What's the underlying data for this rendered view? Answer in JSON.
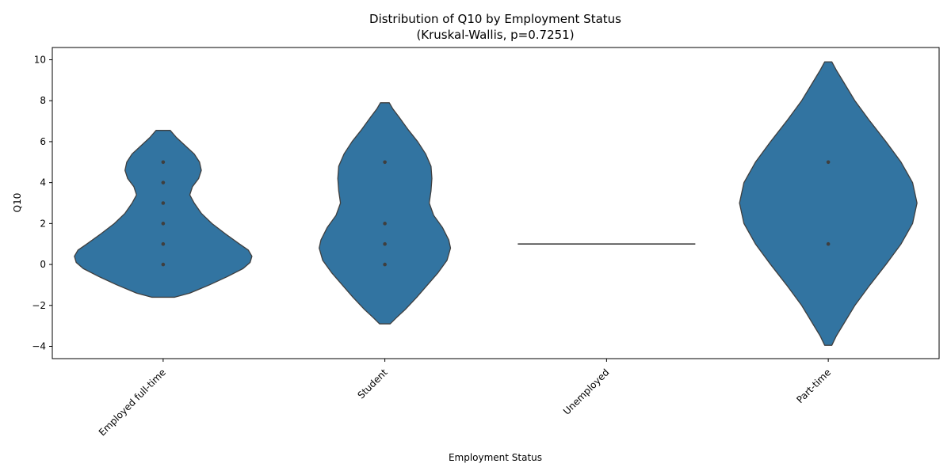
{
  "chart_data": {
    "type": "violin",
    "title": "Distribution of Q10 by Employment Status",
    "subtitle": "(Kruskal-Wallis, p=0.7251)",
    "xlabel": "Employment Status",
    "ylabel": "Q10",
    "categories": [
      "Employed full-time",
      "Student",
      "Unemployed",
      "Part-time"
    ],
    "ylim": [
      -4.6,
      10.6
    ],
    "yticks": [
      -4,
      -2,
      0,
      2,
      4,
      6,
      8,
      10
    ],
    "xtick_rotation": 45,
    "grid": false,
    "fill_color": "#3274a1",
    "edge_color": "#3f3f3f",
    "point_color": "#3f3f3f",
    "violins": [
      {
        "category": "Employed full-time",
        "min": -1.6,
        "max": 6.55,
        "profile": [
          [
            -1.6,
            0.13
          ],
          [
            -1.4,
            0.3
          ],
          [
            -1.0,
            0.52
          ],
          [
            -0.6,
            0.72
          ],
          [
            -0.2,
            0.9
          ],
          [
            0.1,
            0.98
          ],
          [
            0.4,
            1.0
          ],
          [
            0.7,
            0.96
          ],
          [
            1.0,
            0.86
          ],
          [
            1.5,
            0.7
          ],
          [
            2.0,
            0.55
          ],
          [
            2.5,
            0.43
          ],
          [
            3.0,
            0.35
          ],
          [
            3.4,
            0.3
          ],
          [
            3.8,
            0.33
          ],
          [
            4.2,
            0.4
          ],
          [
            4.6,
            0.43
          ],
          [
            5.0,
            0.41
          ],
          [
            5.4,
            0.35
          ],
          [
            5.8,
            0.25
          ],
          [
            6.2,
            0.15
          ],
          [
            6.55,
            0.08
          ]
        ],
        "points": [
          0,
          1,
          2,
          3,
          4,
          5
        ]
      },
      {
        "category": "Student",
        "min": -2.9,
        "max": 7.9,
        "profile": [
          [
            -2.9,
            0.06
          ],
          [
            -2.6,
            0.13
          ],
          [
            -2.2,
            0.23
          ],
          [
            -1.6,
            0.36
          ],
          [
            -1.0,
            0.48
          ],
          [
            -0.4,
            0.6
          ],
          [
            0.2,
            0.7
          ],
          [
            0.8,
            0.74
          ],
          [
            1.2,
            0.72
          ],
          [
            1.8,
            0.65
          ],
          [
            2.4,
            0.55
          ],
          [
            3.0,
            0.5
          ],
          [
            3.6,
            0.52
          ],
          [
            4.2,
            0.53
          ],
          [
            4.8,
            0.52
          ],
          [
            5.4,
            0.46
          ],
          [
            6.0,
            0.37
          ],
          [
            6.6,
            0.26
          ],
          [
            7.2,
            0.16
          ],
          [
            7.6,
            0.09
          ],
          [
            7.9,
            0.05
          ]
        ],
        "points": [
          0,
          1,
          2,
          5
        ]
      },
      {
        "category": "Unemployed",
        "line_value": 1,
        "line_half_width": 1.0,
        "points": [
          1
        ]
      },
      {
        "category": "Part-time",
        "min": -3.95,
        "max": 9.9,
        "profile": [
          [
            -3.95,
            0.04
          ],
          [
            -3.5,
            0.09
          ],
          [
            -3.0,
            0.16
          ],
          [
            -2.0,
            0.3
          ],
          [
            -1.0,
            0.47
          ],
          [
            0.0,
            0.65
          ],
          [
            1.0,
            0.82
          ],
          [
            2.0,
            0.95
          ],
          [
            3.0,
            1.0
          ],
          [
            4.0,
            0.95
          ],
          [
            5.0,
            0.82
          ],
          [
            6.0,
            0.65
          ],
          [
            7.0,
            0.47
          ],
          [
            8.0,
            0.3
          ],
          [
            9.0,
            0.16
          ],
          [
            9.5,
            0.09
          ],
          [
            9.9,
            0.04
          ]
        ],
        "points": [
          1,
          5
        ]
      }
    ]
  }
}
